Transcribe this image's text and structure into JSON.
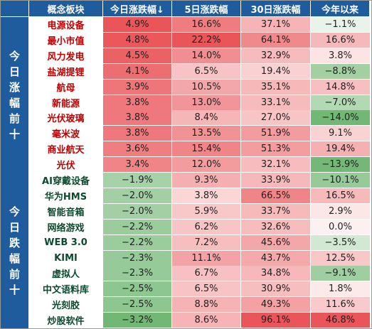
{
  "header": {
    "col_name": "概念板块",
    "col_today": "今日涨跌幅↓",
    "col_5d": "5日涨跌幅",
    "col_30d": "30日涨跌幅",
    "col_ytd": "今年以来"
  },
  "groups": {
    "gainers_label": [
      "今",
      "日",
      "涨",
      "幅",
      "前",
      "十"
    ],
    "losers_label": [
      "今",
      "日",
      "跌",
      "幅",
      "前",
      "十"
    ]
  },
  "gainers": [
    {
      "name": "电源设备",
      "today": "4.9%",
      "d5": "16.6%",
      "d30": "37.1%",
      "ytd": "−1.1%"
    },
    {
      "name": "最小市值",
      "today": "4.8%",
      "d5": "22.2%",
      "d30": "64.1%",
      "ytd": "16.6%"
    },
    {
      "name": "风力发电",
      "today": "4.5%",
      "d5": "14.0%",
      "d30": "32.9%",
      "ytd": "3.8%"
    },
    {
      "name": "盐湖提锂",
      "today": "4.1%",
      "d5": "6.5%",
      "d30": "19.4%",
      "ytd": "−8.8%"
    },
    {
      "name": "航母",
      "today": "3.9%",
      "d5": "10.5%",
      "d30": "35.1%",
      "ytd": "14.8%"
    },
    {
      "name": "新能源",
      "today": "3.8%",
      "d5": "13.0%",
      "d30": "33.1%",
      "ytd": "−7.0%"
    },
    {
      "name": "光伏玻璃",
      "today": "3.8%",
      "d5": "8.4%",
      "d30": "27.0%",
      "ytd": "−14.0%"
    },
    {
      "name": "毫米波",
      "today": "3.8%",
      "d5": "13.5%",
      "d30": "51.9%",
      "ytd": "9.1%"
    },
    {
      "name": "商业航天",
      "today": "3.6%",
      "d5": "15.4%",
      "d30": "51.3%",
      "ytd": "19.4%"
    },
    {
      "name": "光伏",
      "today": "3.4%",
      "d5": "12.0%",
      "d30": "32.1%",
      "ytd": "−13.9%"
    }
  ],
  "losers": [
    {
      "name": "AI穿戴设备",
      "today": "−1.9%",
      "d5": "9.3%",
      "d30": "33.9%",
      "ytd": "−10.1%"
    },
    {
      "name": "华为HMS",
      "today": "−2.0%",
      "d5": "3.8%",
      "d30": "66.5%",
      "ytd": "16.5%"
    },
    {
      "name": "智能音箱",
      "today": "−2.0%",
      "d5": "5.9%",
      "d30": "33.7%",
      "ytd": "2.9%"
    },
    {
      "name": "网络游戏",
      "today": "−2.2%",
      "d5": "6.2%",
      "d30": "32.6%",
      "ytd": "0.0%"
    },
    {
      "name": "WEB 3.0",
      "today": "−2.2%",
      "d5": "7.2%",
      "d30": "45.6%",
      "ytd": "−3.5%"
    },
    {
      "name": "KIMI",
      "today": "−2.3%",
      "d5": "11.1%",
      "d30": "43.7%",
      "ytd": "12.5%"
    },
    {
      "name": "虚拟人",
      "today": "−2.3%",
      "d5": "6.7%",
      "d30": "34.8%",
      "ytd": "−9.1%"
    },
    {
      "name": "中文语料库",
      "today": "−2.5%",
      "d5": "6.5%",
      "d30": "30.9%",
      "ytd": "1.8%"
    },
    {
      "name": "光刻胶",
      "today": "−2.5%",
      "d5": "8.8%",
      "d30": "49.3%",
      "ytd": "11.6%"
    },
    {
      "name": "炒股软件",
      "today": "−3.2%",
      "d5": "8.6%",
      "d30": "96.1%",
      "ytd": "46.8%"
    }
  ],
  "colors": {
    "header_bg": "#1e5c9e",
    "gain_name": "#c00000",
    "loss_name": "#0b4a2f",
    "pos_strong": "#e8484c",
    "pos_light": "#fde4e4",
    "neg_strong": "#5fae62",
    "neg_light": "#e7f3e7"
  }
}
